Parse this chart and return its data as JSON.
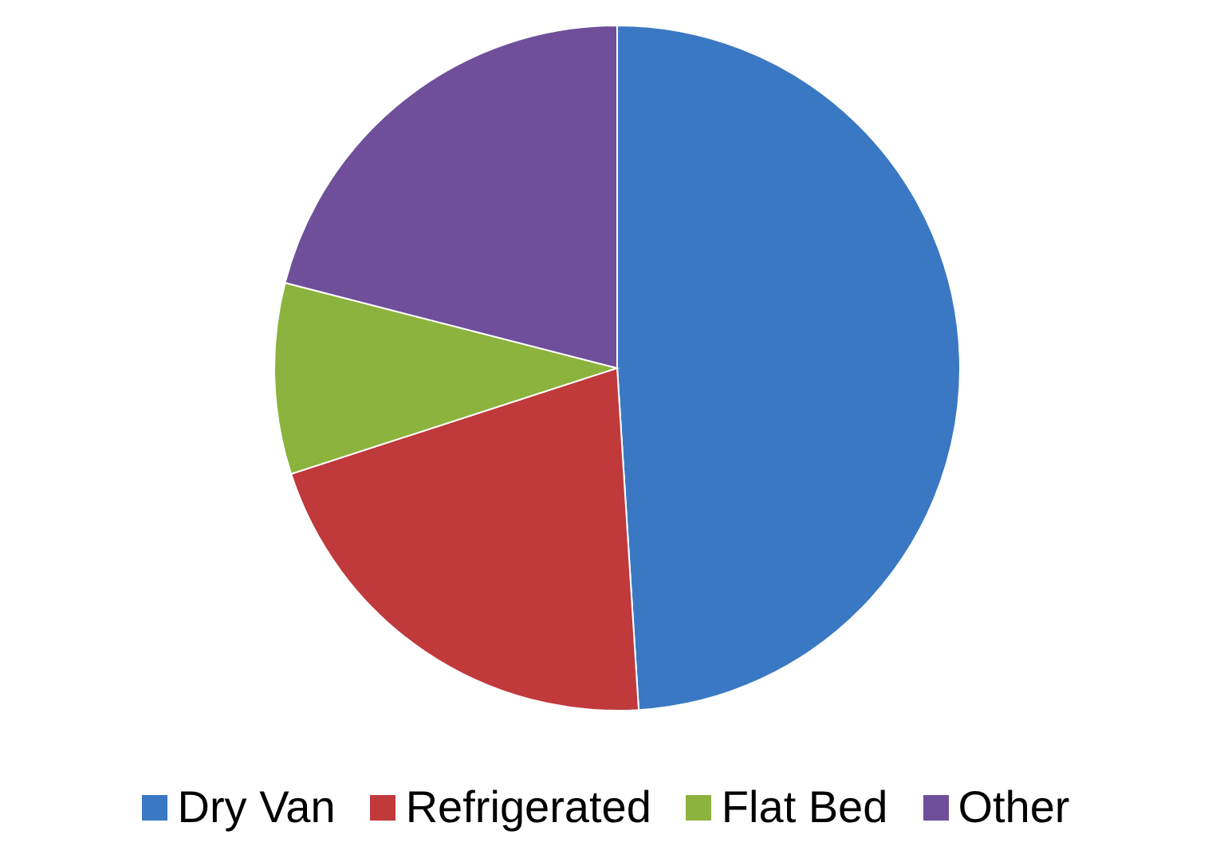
{
  "chart_data": {
    "type": "pie",
    "categories": [
      "Dry Van",
      "Refrigerated",
      "Flat Bed",
      "Other"
    ],
    "values": [
      49,
      21,
      9,
      21
    ],
    "colors": [
      "#3a78c4",
      "#c0393b",
      "#8cb33d",
      "#6f4f9a"
    ],
    "legend": "bottom"
  }
}
